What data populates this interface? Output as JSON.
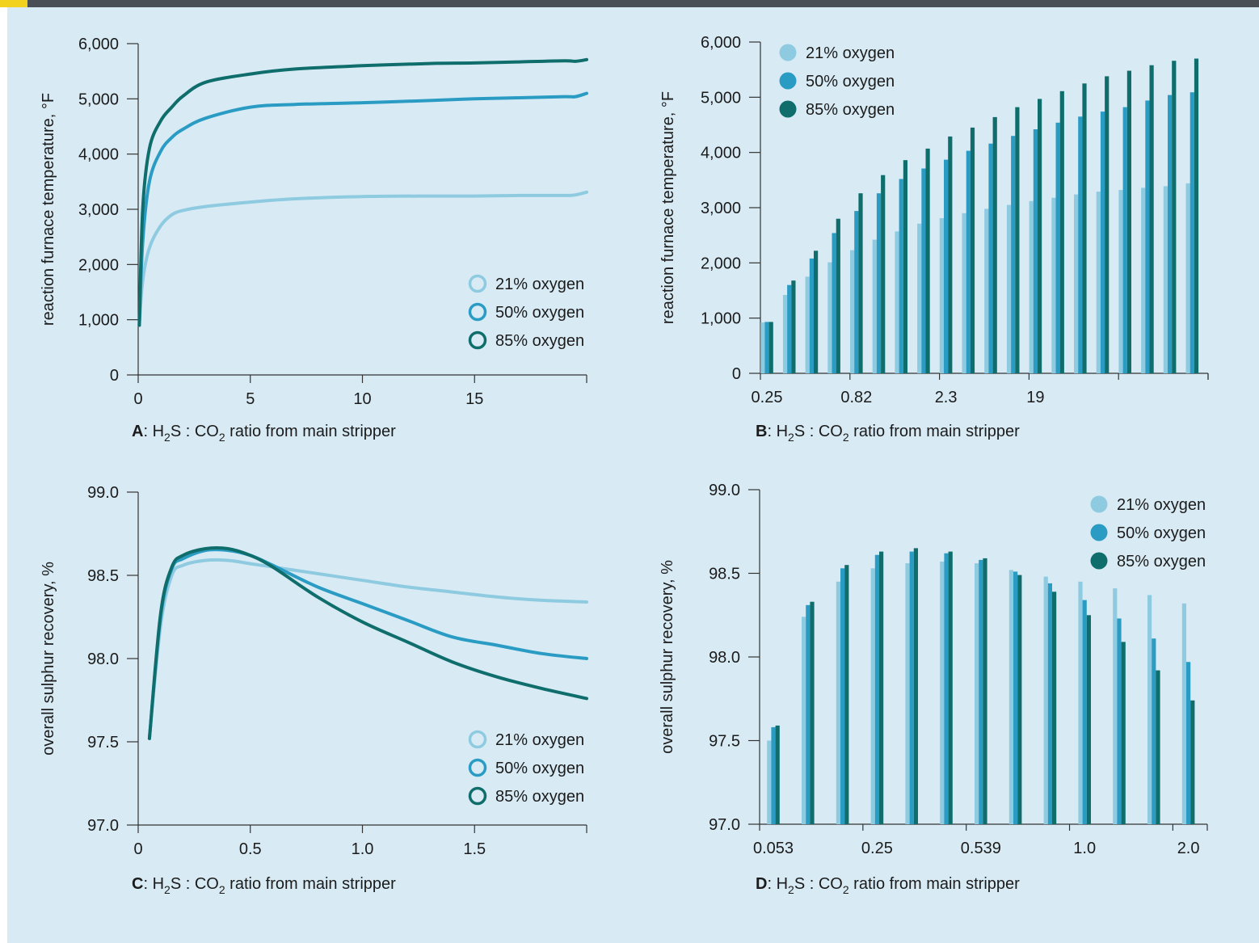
{
  "colors": {
    "o21": "#8ecae0",
    "o50": "#2a9cc4",
    "o85": "#0f6e6c",
    "axis": "#333333",
    "background": "#d8ebf5"
  },
  "chart_data": [
    {
      "panel": "A",
      "type": "line",
      "ylabel": "reaction furnace temperature, °F",
      "caption": {
        "letter": "A",
        "prefix": ": H",
        "sub1": "2",
        "mid": "S : CO",
        "sub2": "2",
        "suffix": " ratio from main stripper"
      },
      "xlim": [
        0,
        20
      ],
      "ylim": [
        0,
        6000
      ],
      "xticks": [
        0,
        5,
        10,
        15,
        20
      ],
      "xtick_labels": [
        "0",
        "5",
        "10",
        "15",
        ""
      ],
      "yticks": [
        0,
        1000,
        2000,
        3000,
        4000,
        5000,
        6000
      ],
      "ytick_labels": [
        "0",
        "1,000",
        "2,000",
        "3,000",
        "4,000",
        "5,000",
        "6,000"
      ],
      "legend": {
        "position": "bottom-right",
        "marker": "ring"
      },
      "series": [
        {
          "name": "21% oxygen",
          "color_key": "o21",
          "x": [
            0.05,
            0.2,
            0.5,
            1,
            1.5,
            2,
            3,
            5,
            7,
            10,
            13,
            15,
            17,
            19,
            19.5,
            20
          ],
          "y": [
            900,
            1700,
            2300,
            2700,
            2900,
            2980,
            3050,
            3130,
            3190,
            3230,
            3240,
            3240,
            3250,
            3250,
            3260,
            3310
          ]
        },
        {
          "name": "50% oxygen",
          "color_key": "o50",
          "x": [
            0.05,
            0.2,
            0.5,
            1,
            1.5,
            2,
            3,
            5,
            7,
            10,
            13,
            15,
            17,
            19,
            19.5,
            20
          ],
          "y": [
            900,
            2400,
            3500,
            4050,
            4300,
            4450,
            4650,
            4850,
            4900,
            4930,
            4970,
            5000,
            5020,
            5040,
            5040,
            5100
          ]
        },
        {
          "name": "85% oxygen",
          "color_key": "o85",
          "x": [
            0.05,
            0.2,
            0.5,
            1,
            1.5,
            2,
            3,
            5,
            7,
            10,
            13,
            15,
            17,
            19,
            19.5,
            20
          ],
          "y": [
            900,
            3000,
            4100,
            4600,
            4850,
            5050,
            5300,
            5450,
            5540,
            5600,
            5640,
            5650,
            5670,
            5690,
            5680,
            5710
          ]
        }
      ]
    },
    {
      "panel": "B",
      "type": "bar",
      "ylabel": "reaction furnace temperature, °F",
      "caption": {
        "letter": "B",
        "prefix": ": H",
        "sub1": "2",
        "mid": "S : CO",
        "sub2": "2",
        "suffix": " ratio from main stripper"
      },
      "ylim": [
        0,
        6000
      ],
      "yticks": [
        0,
        1000,
        2000,
        3000,
        4000,
        5000,
        6000
      ],
      "ytick_labels": [
        "0",
        "1,000",
        "2,000",
        "3,000",
        "4,000",
        "5,000",
        "6,000"
      ],
      "category_count": 20,
      "axis_tick_labels": [
        {
          "index": 0,
          "label": "0.25"
        },
        {
          "index": 4,
          "label": "0.82"
        },
        {
          "index": 8,
          "label": "2.3"
        },
        {
          "index": 12,
          "label": "19"
        }
      ],
      "legend": {
        "position": "top-left",
        "marker": "dot"
      },
      "series": [
        {
          "name": "21% oxygen",
          "color_key": "o21",
          "values": [
            920,
            1420,
            1750,
            2010,
            2230,
            2420,
            2570,
            2710,
            2810,
            2900,
            2980,
            3050,
            3120,
            3180,
            3240,
            3290,
            3320,
            3360,
            3390,
            3440
          ]
        },
        {
          "name": "50% oxygen",
          "color_key": "o50",
          "values": [
            930,
            1600,
            2080,
            2540,
            2940,
            3260,
            3520,
            3710,
            3870,
            4030,
            4160,
            4300,
            4420,
            4540,
            4650,
            4740,
            4820,
            4940,
            5040,
            5090
          ]
        },
        {
          "name": "85% oxygen",
          "color_key": "o85",
          "values": [
            930,
            1680,
            2220,
            2800,
            3260,
            3590,
            3860,
            4070,
            4290,
            4450,
            4640,
            4820,
            4970,
            5110,
            5250,
            5380,
            5480,
            5580,
            5660,
            5700
          ]
        }
      ]
    },
    {
      "panel": "C",
      "type": "line",
      "ylabel": "overall sulphur recovery, %",
      "caption": {
        "letter": "C",
        "prefix": ": H",
        "sub1": "2",
        "mid": "S : CO",
        "sub2": "2",
        "suffix": " ratio from main stripper"
      },
      "xlim": [
        0,
        2
      ],
      "ylim": [
        97.0,
        99.0
      ],
      "xticks": [
        0,
        0.5,
        1.0,
        1.5,
        2.0
      ],
      "xtick_labels": [
        "0",
        "0.5",
        "1.0",
        "1.5",
        ""
      ],
      "yticks": [
        97.0,
        97.5,
        98.0,
        98.5,
        99.0
      ],
      "ytick_labels": [
        "97.0",
        "97.5",
        "98.0",
        "98.5",
        "99.0"
      ],
      "legend": {
        "position": "bottom-right",
        "marker": "ring"
      },
      "series": [
        {
          "name": "21% oxygen",
          "color_key": "o21",
          "x": [
            0.05,
            0.1,
            0.15,
            0.2,
            0.3,
            0.4,
            0.5,
            0.6,
            0.8,
            1.0,
            1.2,
            1.4,
            1.6,
            1.8,
            2.0
          ],
          "y": [
            97.52,
            98.2,
            98.5,
            98.56,
            98.59,
            98.59,
            98.57,
            98.55,
            98.51,
            98.47,
            98.43,
            98.4,
            98.37,
            98.35,
            98.34
          ]
        },
        {
          "name": "50% oxygen",
          "color_key": "o50",
          "x": [
            0.05,
            0.1,
            0.15,
            0.2,
            0.3,
            0.4,
            0.5,
            0.6,
            0.8,
            1.0,
            1.2,
            1.4,
            1.6,
            1.8,
            2.0
          ],
          "y": [
            97.52,
            98.25,
            98.54,
            98.6,
            98.65,
            98.65,
            98.62,
            98.56,
            98.43,
            98.33,
            98.23,
            98.13,
            98.08,
            98.03,
            98.0
          ]
        },
        {
          "name": "85% oxygen",
          "color_key": "o85",
          "x": [
            0.05,
            0.1,
            0.15,
            0.2,
            0.3,
            0.4,
            0.5,
            0.6,
            0.8,
            1.0,
            1.2,
            1.4,
            1.6,
            1.8,
            2.0
          ],
          "y": [
            97.52,
            98.27,
            98.55,
            98.62,
            98.66,
            98.66,
            98.62,
            98.55,
            98.37,
            98.22,
            98.1,
            97.98,
            97.89,
            97.82,
            97.76
          ]
        }
      ]
    },
    {
      "panel": "D",
      "type": "bar",
      "ylabel": "overall sulphur recovery, %",
      "caption": {
        "letter": "D",
        "prefix": ": H",
        "sub1": "2",
        "mid": "S : CO",
        "sub2": "2",
        "suffix": " ratio from main stripper"
      },
      "ylim": [
        97.0,
        99.0
      ],
      "yticks": [
        97.0,
        97.5,
        98.0,
        98.5,
        99.0
      ],
      "ytick_labels": [
        "97.0",
        "97.5",
        "98.0",
        "98.5",
        "99.0"
      ],
      "category_count": 13,
      "axis_tick_labels": [
        {
          "index": 0,
          "label": "0.053"
        },
        {
          "index": 3,
          "label": "0.25"
        },
        {
          "index": 6,
          "label": "0.539"
        },
        {
          "index": 9,
          "label": "1.0"
        },
        {
          "index": 12,
          "label": "2.0"
        }
      ],
      "legend": {
        "position": "top-right",
        "marker": "dot"
      },
      "series": [
        {
          "name": "21% oxygen",
          "color_key": "o21",
          "values": [
            97.5,
            98.24,
            98.45,
            98.53,
            98.56,
            98.57,
            98.56,
            98.52,
            98.48,
            98.45,
            98.41,
            98.37,
            98.32
          ]
        },
        {
          "name": "50% oxygen",
          "color_key": "o50",
          "values": [
            97.58,
            98.31,
            98.53,
            98.61,
            98.63,
            98.62,
            98.58,
            98.51,
            98.44,
            98.34,
            98.23,
            98.11,
            97.97
          ]
        },
        {
          "name": "85% oxygen",
          "color_key": "o85",
          "values": [
            97.59,
            98.33,
            98.55,
            98.63,
            98.65,
            98.63,
            98.59,
            98.49,
            98.39,
            98.25,
            98.09,
            97.92,
            97.74
          ]
        }
      ]
    }
  ]
}
